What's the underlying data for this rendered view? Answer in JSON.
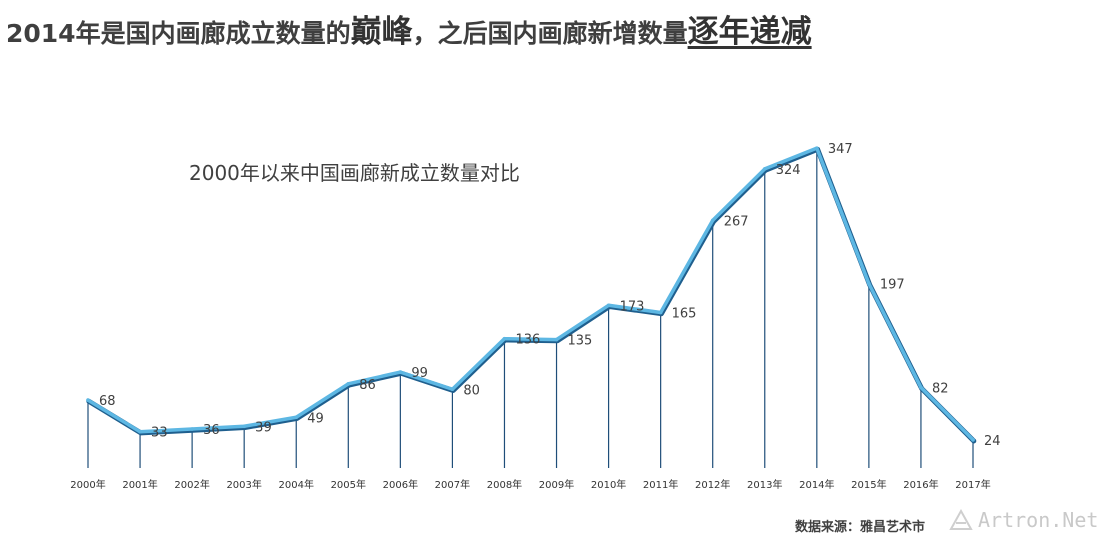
{
  "headline": {
    "part1": "2014年是国内画廊成立数量的",
    "emphasis": "巅峰",
    "part2": "，之后国内画廊新增数量",
    "emphasis_underlined": "逐年递减"
  },
  "source_text": "数据来源：雅昌艺术市",
  "watermark_text": "Artron.Net",
  "colors": {
    "line": "#5db7e3",
    "line_shadow": "#1f5f8e",
    "drop_line": "#1f4e79"
  },
  "chart_data": {
    "type": "line",
    "title": "2000年以来中国画廊新成立数量对比",
    "categories": [
      "2000年",
      "2001年",
      "2002年",
      "2003年",
      "2004年",
      "2005年",
      "2006年",
      "2007年",
      "2008年",
      "2009年",
      "2010年",
      "2011年",
      "2012年",
      "2013年",
      "2014年",
      "2015年",
      "2016年",
      "2017年"
    ],
    "values": [
      68,
      33,
      36,
      39,
      49,
      86,
      99,
      80,
      136,
      135,
      173,
      165,
      267,
      324,
      347,
      197,
      82,
      24
    ],
    "xlabel": "",
    "ylabel": "",
    "ylim": [
      0,
      347
    ],
    "grid": false,
    "legend": "none",
    "drop_lines": true
  }
}
